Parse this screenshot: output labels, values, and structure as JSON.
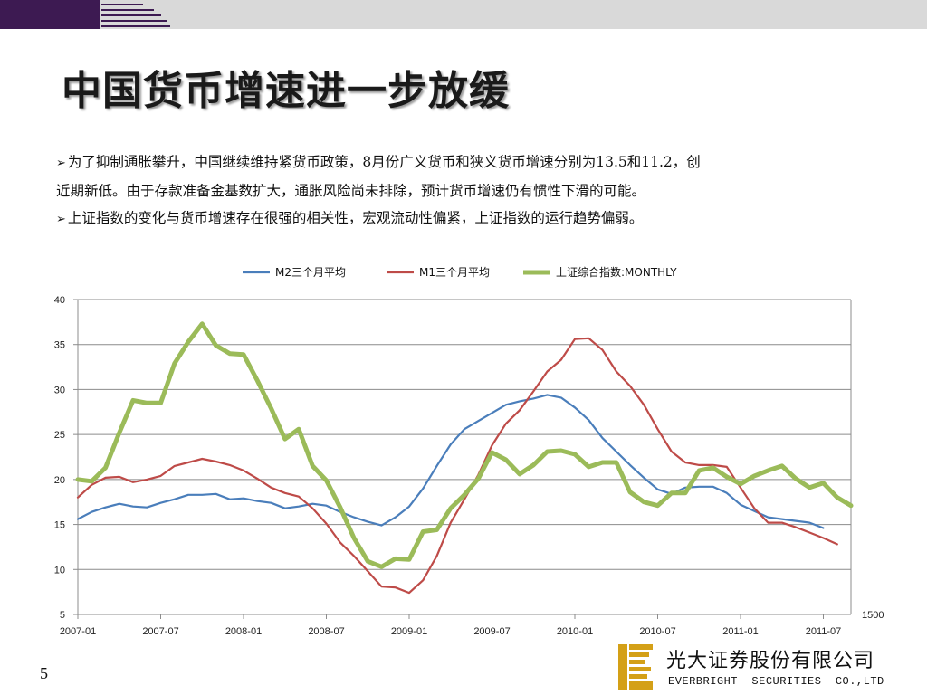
{
  "slide": {
    "title": "中国货币增速进一步放缓",
    "bullet1_line1": "为了抑制通胀攀升，中国继续维持紧货币政策，8月份广义货币和狭义货币增速分别为13.5和11.2，创",
    "bullet1_line2": "近期新低。由于存款准备金基数扩大，通胀风险尚未排除，预计货币增速仍有惯性下滑的可能。",
    "bullet2": "上证指数的变化与货币增速存在很强的相关性，宏观流动性偏紧，上证指数的运行趋势偏弱。",
    "bullet_marker": "➢",
    "page_number": "5",
    "company_cn": "光大证券股份有限公司",
    "company_en": "EVERBRIGHT  SECURITIES  CO.,LTD",
    "colors": {
      "header_bar": "#d9d9d9",
      "brand_purple": "#3d1a52",
      "logo_gold": "#d4a017"
    }
  },
  "chart_data": {
    "type": "line",
    "title": "",
    "xlabel": "",
    "ylabel": "",
    "ylim": [
      5,
      40
    ],
    "yticks": [
      "5",
      "10",
      "15",
      "20",
      "25",
      "30",
      "35",
      "40"
    ],
    "secondary_axis_label": "1500",
    "xtick_labels": [
      "2007-01",
      "2007-07",
      "2008-01",
      "2008-07",
      "2009-01",
      "2009-07",
      "2010-01",
      "2010-07",
      "2011-01",
      "2011-07"
    ],
    "x_start": "2007-01",
    "x_end": "2011-09",
    "grid": true,
    "legend_position": "top",
    "series": [
      {
        "name": "M2三个月平均",
        "color": "#4a7ebb",
        "width": 2.2,
        "values": [
          15.6,
          16.4,
          16.9,
          17.3,
          17.0,
          16.9,
          17.4,
          17.8,
          18.3,
          18.3,
          18.4,
          17.8,
          17.9,
          17.6,
          17.4,
          16.8,
          17.0,
          17.3,
          17.1,
          16.4,
          15.8,
          15.3,
          14.9,
          15.8,
          17.0,
          19.0,
          21.5,
          23.9,
          25.6,
          26.5,
          27.4,
          28.3,
          28.7,
          29.0,
          29.4,
          29.1,
          28.0,
          26.6,
          24.6,
          23.1,
          21.6,
          20.2,
          18.9,
          18.4,
          19.1,
          19.2,
          19.2,
          18.5,
          17.2,
          16.5,
          15.8,
          15.6,
          15.4,
          15.2,
          14.6
        ]
      },
      {
        "name": "M1三个月平均",
        "color": "#be4b48",
        "width": 2.2,
        "values": [
          18.0,
          19.4,
          20.2,
          20.3,
          19.7,
          20.0,
          20.4,
          21.5,
          21.9,
          22.3,
          22.0,
          21.6,
          21.0,
          20.1,
          19.1,
          18.5,
          18.1,
          16.8,
          15.1,
          13.0,
          11.5,
          9.8,
          8.1,
          8.0,
          7.4,
          8.8,
          11.5,
          15.2,
          17.8,
          20.5,
          23.8,
          26.2,
          27.7,
          29.8,
          32.0,
          33.3,
          35.6,
          35.7,
          34.4,
          32.0,
          30.4,
          28.3,
          25.6,
          23.1,
          21.9,
          21.6,
          21.6,
          21.4,
          19.1,
          16.8,
          15.2,
          15.2,
          14.7,
          14.1,
          13.5,
          12.8
        ]
      },
      {
        "name": "上证综合指数:MONTHLY",
        "color": "#9bbb59",
        "width": 5,
        "values": [
          20.0,
          19.8,
          21.3,
          25.2,
          28.8,
          28.5,
          28.5,
          32.9,
          35.3,
          37.3,
          34.9,
          34.0,
          33.9,
          31.0,
          27.9,
          24.5,
          25.6,
          21.5,
          19.9,
          16.9,
          13.5,
          10.9,
          10.3,
          11.2,
          11.1,
          14.2,
          14.4,
          16.8,
          18.3,
          20.1,
          23.0,
          22.2,
          20.6,
          21.6,
          23.1,
          23.2,
          22.8,
          21.4,
          21.9,
          21.9,
          18.6,
          17.5,
          17.1,
          18.5,
          18.5,
          21.0,
          21.3,
          20.3,
          19.5,
          20.4,
          21.0,
          21.5,
          20.1,
          19.1,
          19.6,
          18.0,
          17.1
        ]
      }
    ]
  }
}
